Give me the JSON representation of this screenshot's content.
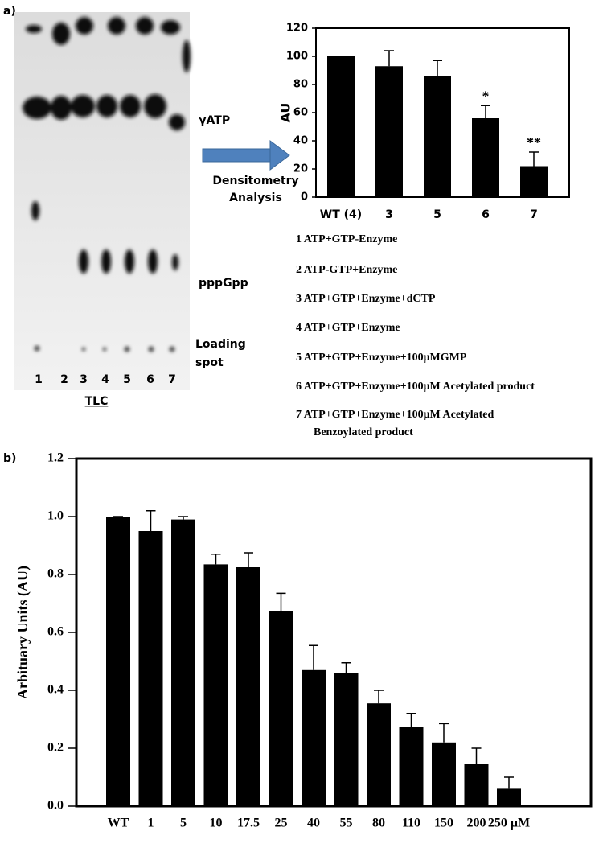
{
  "panel_labels": [
    "a)",
    "b)"
  ],
  "tlc": {
    "lanes": [
      "1",
      "2",
      "3",
      "4",
      "5",
      "6",
      "7"
    ],
    "title": "TLC",
    "bands": [
      "γATP",
      "pppGpp"
    ],
    "loading": [
      "Loading",
      "spot"
    ]
  },
  "arrow_text": [
    "Densitometry",
    "Analysis"
  ],
  "conditions": [
    "1 ATP+GTP-Enzyme",
    "2 ATP-GTP+Enzyme",
    "3 ATP+GTP+Enzyme+dCTP",
    "4 ATP+GTP+Enzyme",
    "5 ATP+GTP+Enzyme+100μMGMP",
    "6 ATP+GTP+Enzyme+100μM  Acetylated product",
    [
      "7 ATP+GTP+Enzyme+100μM  Acetylated",
      "Benzoylated product"
    ]
  ],
  "chart_data": [
    {
      "type": "bar",
      "ylabel": "AU",
      "categories": [
        "WT (4)",
        "3",
        "5",
        "6",
        "7"
      ],
      "values": [
        100,
        93,
        86,
        56,
        22
      ],
      "errors": [
        0,
        11,
        11,
        9,
        10
      ],
      "significance": [
        null,
        null,
        null,
        "*",
        "**"
      ],
      "color": "#000000",
      "ylim": [
        0,
        120
      ],
      "yticks": [
        0,
        20,
        40,
        60,
        80,
        100,
        120
      ]
    },
    {
      "type": "bar",
      "ylabel": "Arbituary Units (AU)",
      "categories": [
        "WT",
        "1",
        "5",
        "10",
        "17.5",
        "25",
        "40",
        "55",
        "80",
        "110",
        "150",
        "200",
        "250 μM"
      ],
      "values": [
        1.0,
        0.95,
        0.99,
        0.835,
        0.825,
        0.675,
        0.47,
        0.46,
        0.355,
        0.275,
        0.22,
        0.145,
        0.06
      ],
      "errors": [
        0,
        0.07,
        0.01,
        0.035,
        0.05,
        0.06,
        0.085,
        0.035,
        0.045,
        0.045,
        0.065,
        0.055,
        0.04
      ],
      "color": "#000000",
      "ylim": [
        0,
        1.2
      ],
      "yticks": [
        {
          "value": 0,
          "label": "0.0"
        },
        {
          "value": 0.2,
          "label": "0.2"
        },
        {
          "value": 0.4,
          "label": "0.4"
        },
        {
          "value": 0.6,
          "label": "0.6"
        },
        {
          "value": 0.8,
          "label": "0.8"
        },
        {
          "value": 1.0,
          "label": "1.0"
        },
        {
          "value": 1.2,
          "label": "1.2"
        }
      ]
    }
  ]
}
